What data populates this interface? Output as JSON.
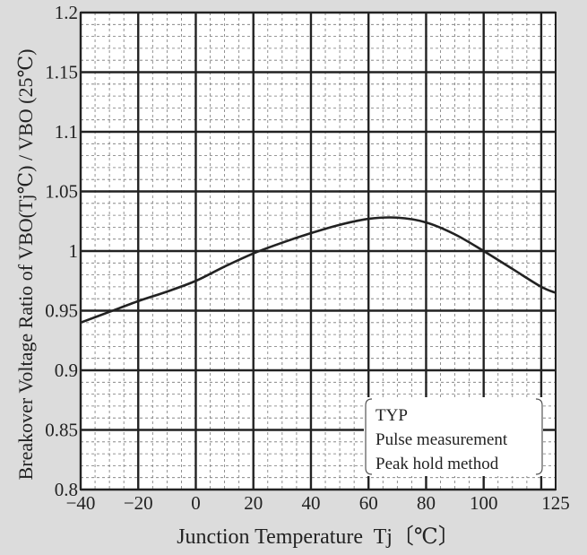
{
  "chart_data": {
    "type": "line",
    "xlabel": "Junction Temperature  Tj〔℃〕",
    "ylabel": "Breakover Voltage Ratio of VBO(Tj℃) / VBO (25℃)",
    "xlim": [
      -40,
      125
    ],
    "ylim": [
      0.8,
      1.2
    ],
    "x_ticks": [
      -40,
      -20,
      0,
      20,
      40,
      60,
      80,
      100,
      125
    ],
    "x_tick_labels": [
      "−40",
      "−20",
      "0",
      "20",
      "40",
      "60",
      "80",
      "100",
      "125"
    ],
    "y_ticks": [
      0.8,
      0.85,
      0.9,
      0.95,
      1.0,
      1.05,
      1.1,
      1.15,
      1.2
    ],
    "y_tick_labels": [
      "0.8",
      "0.85",
      "0.9",
      "0.95",
      "1",
      "1.05",
      "1.1",
      "1.15",
      "1.2"
    ],
    "grid": true,
    "series": [
      {
        "x": [
          -40,
          -30,
          -20,
          -10,
          0,
          10,
          20,
          30,
          40,
          50,
          60,
          70,
          80,
          90,
          100,
          110,
          120,
          125
        ],
        "y": [
          0.94,
          0.949,
          0.958,
          0.966,
          0.975,
          0.987,
          0.998,
          1.007,
          1.015,
          1.022,
          1.027,
          1.028,
          1.024,
          1.014,
          1.0,
          0.985,
          0.97,
          0.965
        ],
        "color": "#222222"
      }
    ],
    "annotation": [
      "TYP",
      "Pulse measurement",
      "Peak hold method"
    ]
  }
}
